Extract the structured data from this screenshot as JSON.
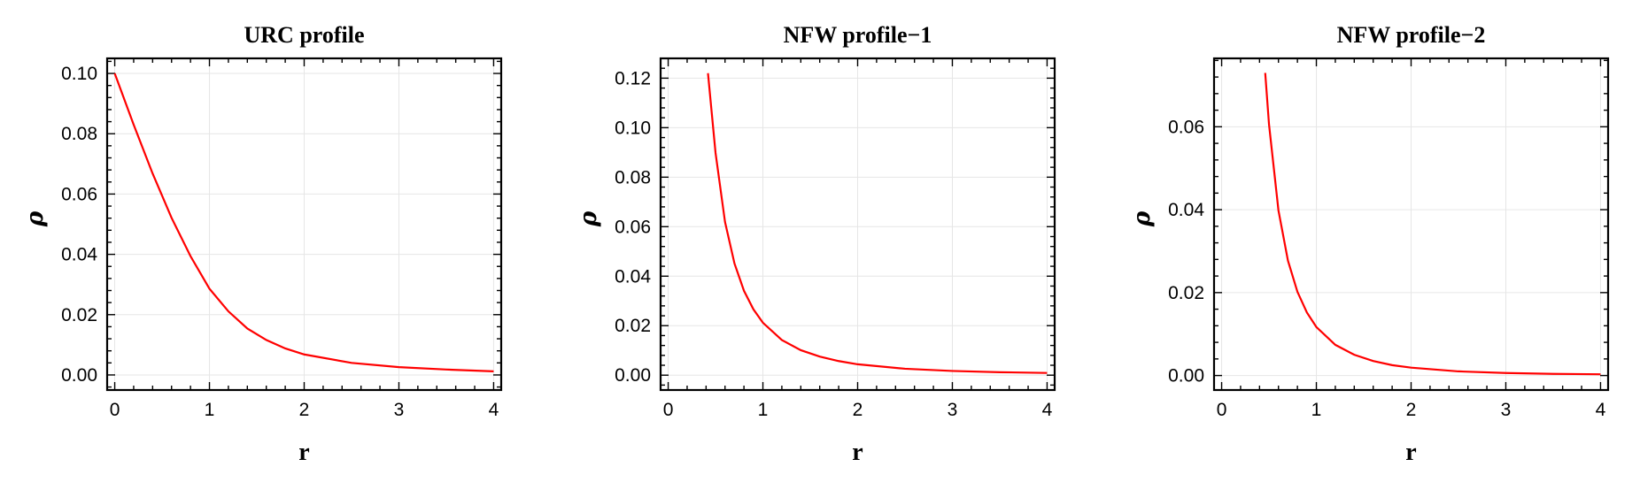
{
  "chart_data": [
    {
      "type": "line",
      "title": "URC profile",
      "xlabel": "r",
      "ylabel": "ρ",
      "xlim": [
        -0.08,
        4.08
      ],
      "ylim": [
        -0.005,
        0.105
      ],
      "xticks": [
        0,
        1,
        2,
        3,
        4
      ],
      "xtick_labels": [
        "0",
        "1",
        "2",
        "3",
        "4"
      ],
      "yticks": [
        0.0,
        0.02,
        0.04,
        0.06,
        0.08,
        0.1
      ],
      "ytick_labels": [
        "0.00",
        "0.02",
        "0.04",
        "0.06",
        "0.08",
        "0.10"
      ],
      "grid": true,
      "series": [
        {
          "color": "#ff0000",
          "x": [
            0,
            0.2,
            0.4,
            0.6,
            0.8,
            1.0,
            1.2,
            1.4,
            1.6,
            1.8,
            2.0,
            2.5,
            3.0,
            3.5,
            4.0
          ],
          "y": [
            0.1,
            0.083,
            0.0668,
            0.0521,
            0.0394,
            0.0286,
            0.0211,
            0.0154,
            0.0116,
            0.0088,
            0.0068,
            0.004,
            0.0026,
            0.0018,
            0.0012
          ]
        }
      ]
    },
    {
      "type": "line",
      "title": "NFW profile−1",
      "xlabel": "r",
      "ylabel": "ρ",
      "xlim": [
        -0.08,
        4.08
      ],
      "ylim": [
        -0.006,
        0.128
      ],
      "xticks": [
        0,
        1,
        2,
        3,
        4
      ],
      "xtick_labels": [
        "0",
        "1",
        "2",
        "3",
        "4"
      ],
      "yticks": [
        0.0,
        0.02,
        0.04,
        0.06,
        0.08,
        0.1,
        0.12
      ],
      "ytick_labels": [
        "0.00",
        "0.02",
        "0.04",
        "0.06",
        "0.08",
        "0.10",
        "0.12"
      ],
      "grid": true,
      "series": [
        {
          "color": "#ff0000",
          "x": [
            0.42,
            0.5,
            0.6,
            0.7,
            0.8,
            0.9,
            1.0,
            1.2,
            1.4,
            1.6,
            1.8,
            2.0,
            2.5,
            3.0,
            3.5,
            4.0
          ],
          "y": [
            0.122,
            0.0898,
            0.0619,
            0.0451,
            0.0341,
            0.0266,
            0.0212,
            0.0142,
            0.0101,
            0.0075,
            0.0057,
            0.0044,
            0.0026,
            0.0017,
            0.0012,
            0.0009
          ]
        }
      ]
    },
    {
      "type": "line",
      "title": "NFW profile−2",
      "xlabel": "r",
      "ylabel": "ρ",
      "xlim": [
        -0.08,
        4.08
      ],
      "ylim": [
        -0.0035,
        0.0765
      ],
      "xticks": [
        0,
        1,
        2,
        3,
        4
      ],
      "xtick_labels": [
        "0",
        "1",
        "2",
        "3",
        "4"
      ],
      "yticks": [
        0.0,
        0.02,
        0.04,
        0.06
      ],
      "ytick_labels": [
        "0.00",
        "0.02",
        "0.04",
        "0.06"
      ],
      "grid": true,
      "series": [
        {
          "color": "#ff0000",
          "x": [
            0.46,
            0.5,
            0.6,
            0.7,
            0.8,
            0.9,
            1.0,
            1.2,
            1.4,
            1.6,
            1.8,
            2.0,
            2.5,
            3.0,
            3.5,
            4.0
          ],
          "y": [
            0.073,
            0.0606,
            0.0398,
            0.0277,
            0.0202,
            0.0152,
            0.0117,
            0.0074,
            0.005,
            0.0035,
            0.0025,
            0.0019,
            0.001,
            0.0006,
            0.0004,
            0.0003
          ]
        }
      ]
    }
  ]
}
